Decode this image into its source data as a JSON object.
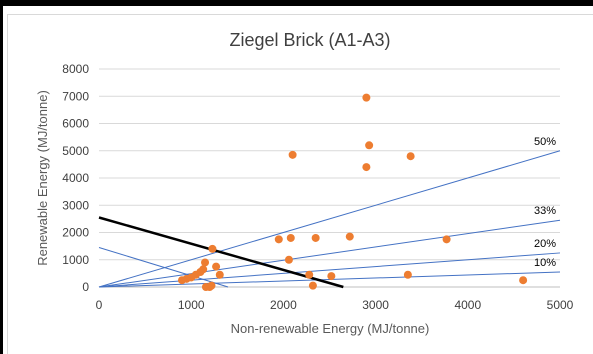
{
  "chart_data": {
    "type": "scatter",
    "title": "Ziegel Brick (A1-A3)",
    "xlabel": "Non-renewable Energy (MJ/tonne)",
    "ylabel": "Renewable Energy (MJ/tonne)",
    "xlim": [
      0,
      5000
    ],
    "ylim": [
      0,
      8000
    ],
    "x_ticks": [
      0,
      1000,
      2000,
      3000,
      4000,
      5000
    ],
    "y_ticks": [
      0,
      1000,
      2000,
      3000,
      4000,
      5000,
      6000,
      7000,
      8000
    ],
    "grid": "horizontal",
    "colors": {
      "points": "#ED7D31",
      "ref_lines": "#4472C4",
      "threshold_line": "#000000",
      "gridlines": "#d9d9d9"
    },
    "points": [
      {
        "x": 900,
        "y": 250
      },
      {
        "x": 950,
        "y": 300
      },
      {
        "x": 1000,
        "y": 350
      },
      {
        "x": 1050,
        "y": 450
      },
      {
        "x": 1100,
        "y": 550
      },
      {
        "x": 1130,
        "y": 650
      },
      {
        "x": 1150,
        "y": 900
      },
      {
        "x": 1160,
        "y": 0
      },
      {
        "x": 1200,
        "y": 0
      },
      {
        "x": 1220,
        "y": 50
      },
      {
        "x": 1230,
        "y": 1400
      },
      {
        "x": 1270,
        "y": 750
      },
      {
        "x": 1310,
        "y": 450
      },
      {
        "x": 1950,
        "y": 1750
      },
      {
        "x": 2060,
        "y": 1000
      },
      {
        "x": 2080,
        "y": 1800
      },
      {
        "x": 2100,
        "y": 4850
      },
      {
        "x": 2280,
        "y": 450
      },
      {
        "x": 2320,
        "y": 50
      },
      {
        "x": 2350,
        "y": 1800
      },
      {
        "x": 2520,
        "y": 400
      },
      {
        "x": 2720,
        "y": 1850
      },
      {
        "x": 2900,
        "y": 6950
      },
      {
        "x": 2900,
        "y": 4400
      },
      {
        "x": 2930,
        "y": 5200
      },
      {
        "x": 3350,
        "y": 450
      },
      {
        "x": 3380,
        "y": 4800
      },
      {
        "x": 3770,
        "y": 1750
      },
      {
        "x": 4600,
        "y": 250
      }
    ],
    "reference_lines": [
      {
        "label": "50%",
        "from": [
          0,
          0
        ],
        "to": [
          5000,
          5000
        ]
      },
      {
        "label": "33%",
        "from": [
          0,
          0
        ],
        "to": [
          5000,
          2450
        ]
      },
      {
        "label": "20%",
        "from": [
          0,
          0
        ],
        "to": [
          5000,
          1250
        ]
      },
      {
        "label": "10%",
        "from": [
          0,
          0
        ],
        "to": [
          5000,
          550
        ]
      }
    ],
    "extra_lines": [
      {
        "style": "thin-blue",
        "from": [
          0,
          1450
        ],
        "to": [
          1400,
          0
        ]
      },
      {
        "style": "thick-black",
        "from": [
          0,
          2550
        ],
        "to": [
          2650,
          0
        ]
      }
    ]
  }
}
